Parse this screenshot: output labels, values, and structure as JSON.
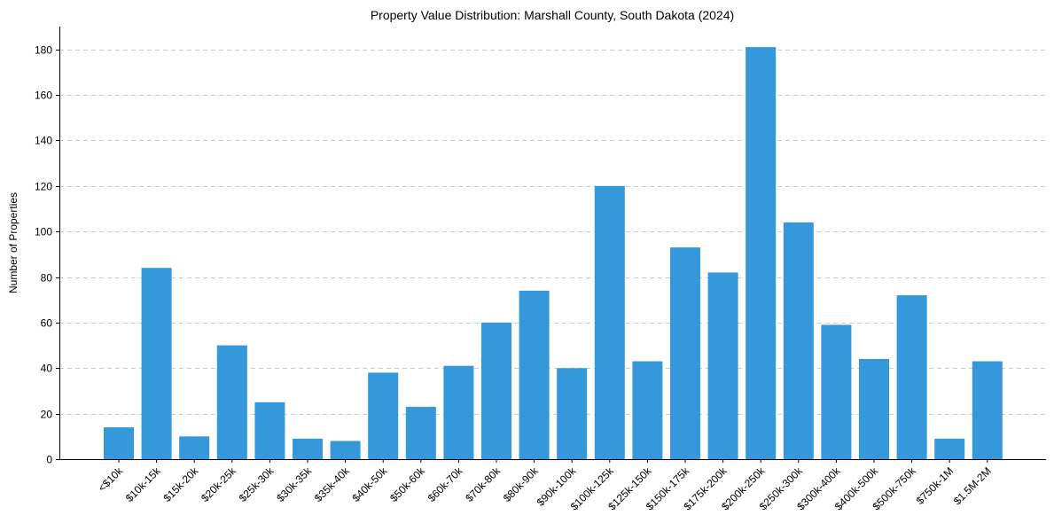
{
  "chart_data": {
    "type": "bar",
    "title": "Property Value Distribution: Marshall County, South Dakota (2024)",
    "xlabel": "",
    "ylabel": "Number of Properties",
    "categories": [
      "<$10k",
      "$10k-15k",
      "$15k-20k",
      "$20k-25k",
      "$25k-30k",
      "$30k-35k",
      "$35k-40k",
      "$40k-50k",
      "$50k-60k",
      "$60k-70k",
      "$70k-80k",
      "$80k-90k",
      "$90k-100k",
      "$100k-125k",
      "$125k-150k",
      "$150k-175k",
      "$175k-200k",
      "$200k-250k",
      "$250k-300k",
      "$300k-400k",
      "$400k-500k",
      "$500k-750k",
      "$750k-1M",
      "$1.5M-2M"
    ],
    "values": [
      14,
      84,
      10,
      50,
      25,
      9,
      8,
      38,
      23,
      41,
      60,
      74,
      40,
      120,
      43,
      93,
      82,
      181,
      104,
      59,
      44,
      72,
      9,
      43
    ],
    "ylim": [
      0,
      190
    ],
    "yticks": [
      0,
      20,
      40,
      60,
      80,
      100,
      120,
      140,
      160,
      180
    ],
    "grid": "y-dashed",
    "bar_color": "#3498db"
  }
}
